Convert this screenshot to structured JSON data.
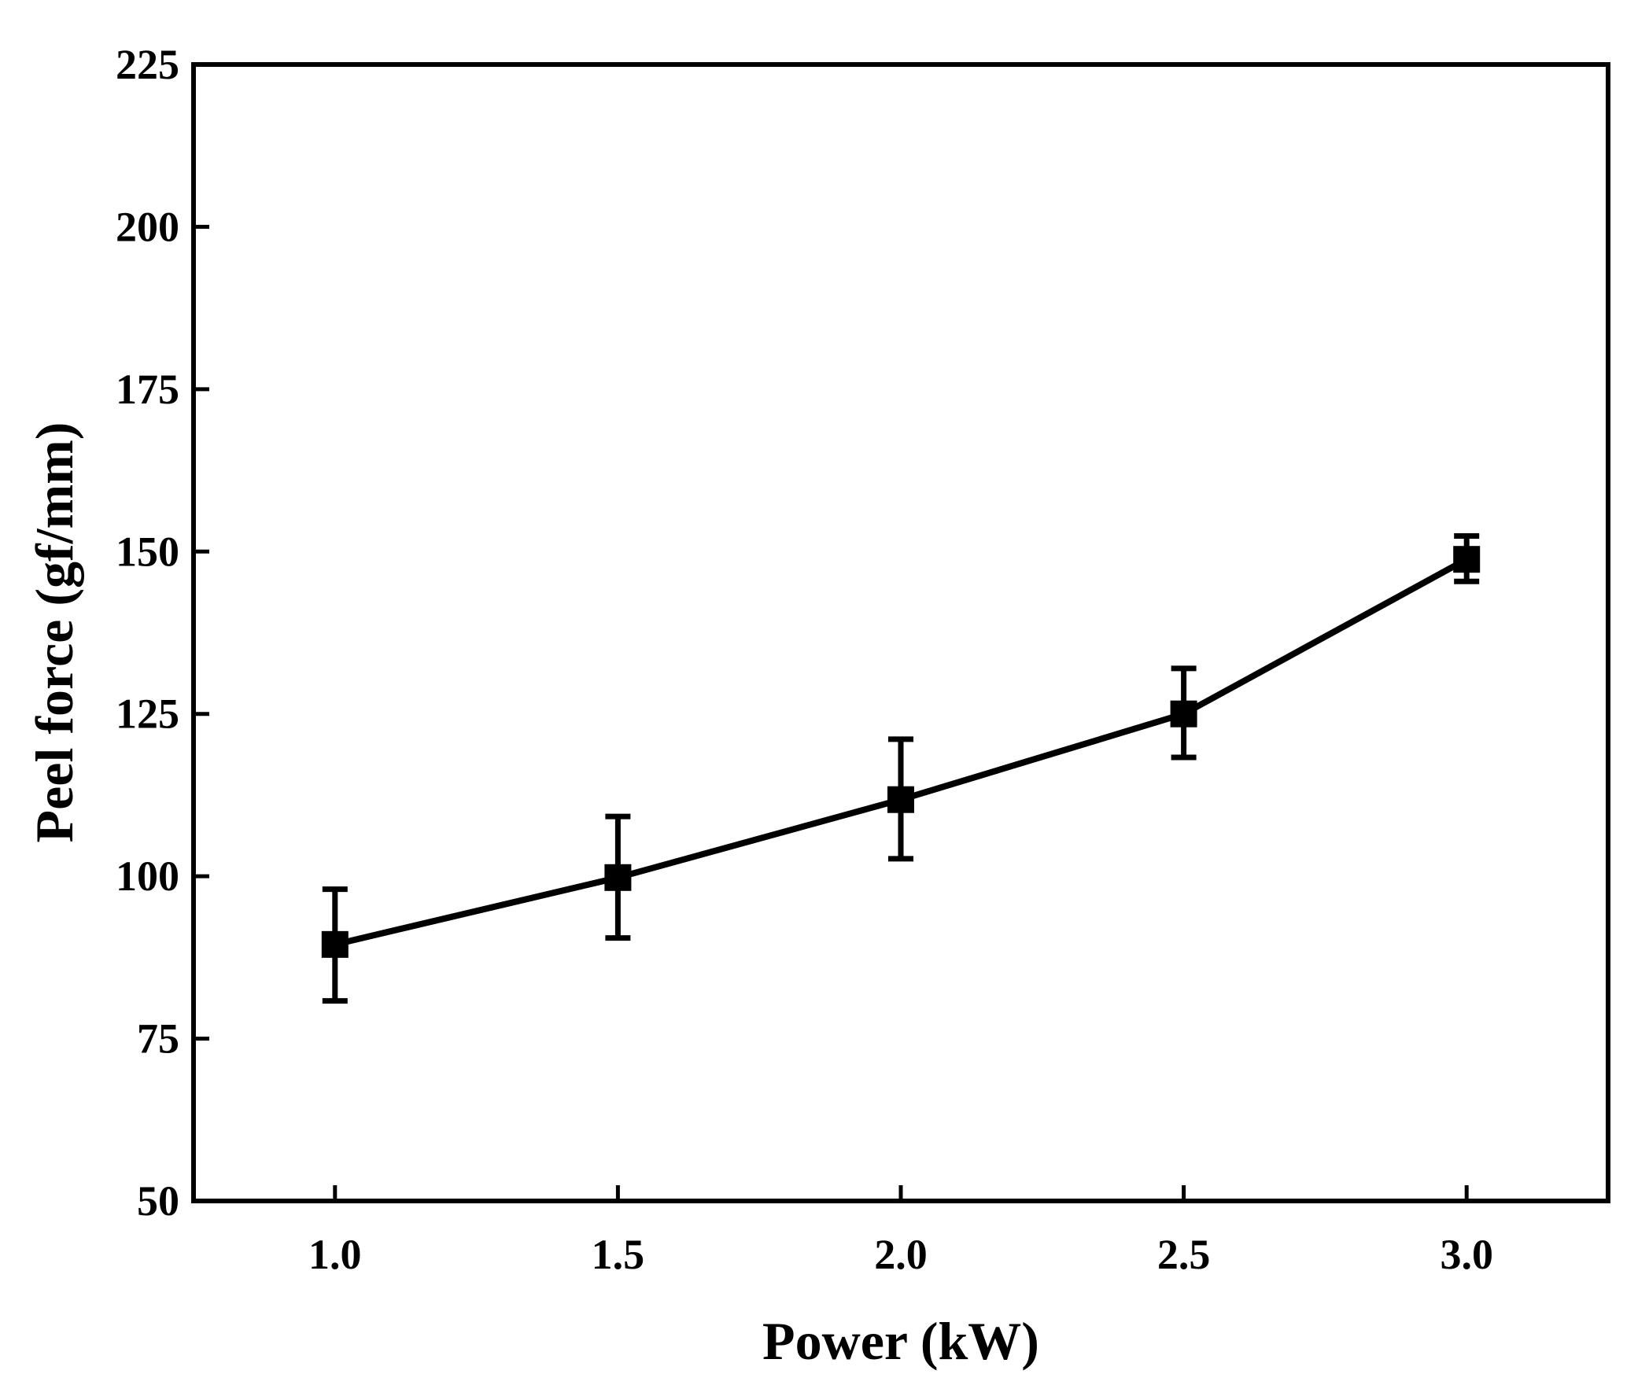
{
  "chart_data": {
    "type": "line",
    "title": "",
    "xlabel": "Power (kW)",
    "ylabel": "Peel force (gf/mm)",
    "xlim": [
      0.75,
      3.25
    ],
    "ylim": [
      50,
      225
    ],
    "xticks": [
      1.0,
      1.5,
      2.0,
      2.5,
      3.0
    ],
    "xtick_labels": [
      "1.0",
      "1.5",
      "2.0",
      "2.5",
      "3.0"
    ],
    "yticks": [
      50,
      75,
      100,
      125,
      150,
      175,
      200,
      225
    ],
    "ytick_labels": [
      "50",
      "75",
      "100",
      "125",
      "150",
      "175",
      "200",
      "225"
    ],
    "grid": false,
    "legend": "none",
    "marker": "square",
    "series": [
      {
        "name": "Peel force",
        "x": [
          1.0,
          1.5,
          2.0,
          2.5,
          3.0
        ],
        "y": [
          89.5,
          99.8,
          111.8,
          125.0,
          148.8
        ],
        "err_low": [
          8.7,
          9.3,
          9.1,
          6.7,
          3.4
        ],
        "err_high": [
          8.5,
          9.4,
          9.3,
          7.0,
          3.6
        ]
      }
    ],
    "colors": {
      "line": "#000000",
      "axes": "#000000",
      "background": "#ffffff"
    }
  }
}
